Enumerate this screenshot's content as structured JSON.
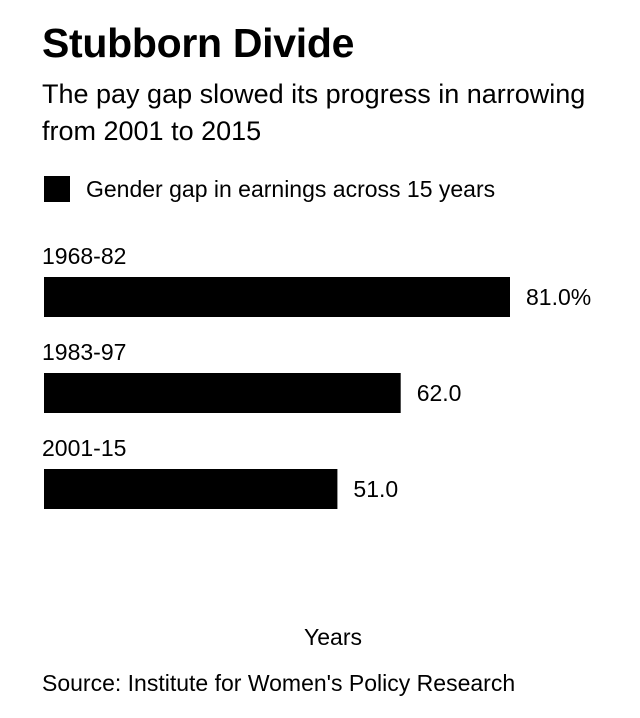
{
  "header": {
    "title": "Stubborn Divide",
    "subtitle": "The pay gap slowed its progress in narrowing from 2001 to 2015"
  },
  "legend": {
    "label": "Gender gap in earnings across 15 years",
    "color": "#000000"
  },
  "chart_data": {
    "type": "bar",
    "orientation": "horizontal",
    "title": "Stubborn Divide",
    "subtitle": "The pay gap slowed its progress in narrowing from 2001 to 2015",
    "categories": [
      "1968-82",
      "1983-97",
      "2001-15"
    ],
    "series": [
      {
        "name": "Gender gap in earnings across 15 years",
        "values": [
          81.0,
          62.0,
          51.0
        ],
        "color": "#000000"
      }
    ],
    "value_labels": [
      "81.0%",
      "62.0",
      "51.0"
    ],
    "xlabel": "Years",
    "ylabel": "",
    "xlim": [
      0,
      81.0
    ],
    "grid": false,
    "legend_position": "top-left"
  },
  "footer": {
    "source": "Source: Institute for Women's Policy Research"
  }
}
